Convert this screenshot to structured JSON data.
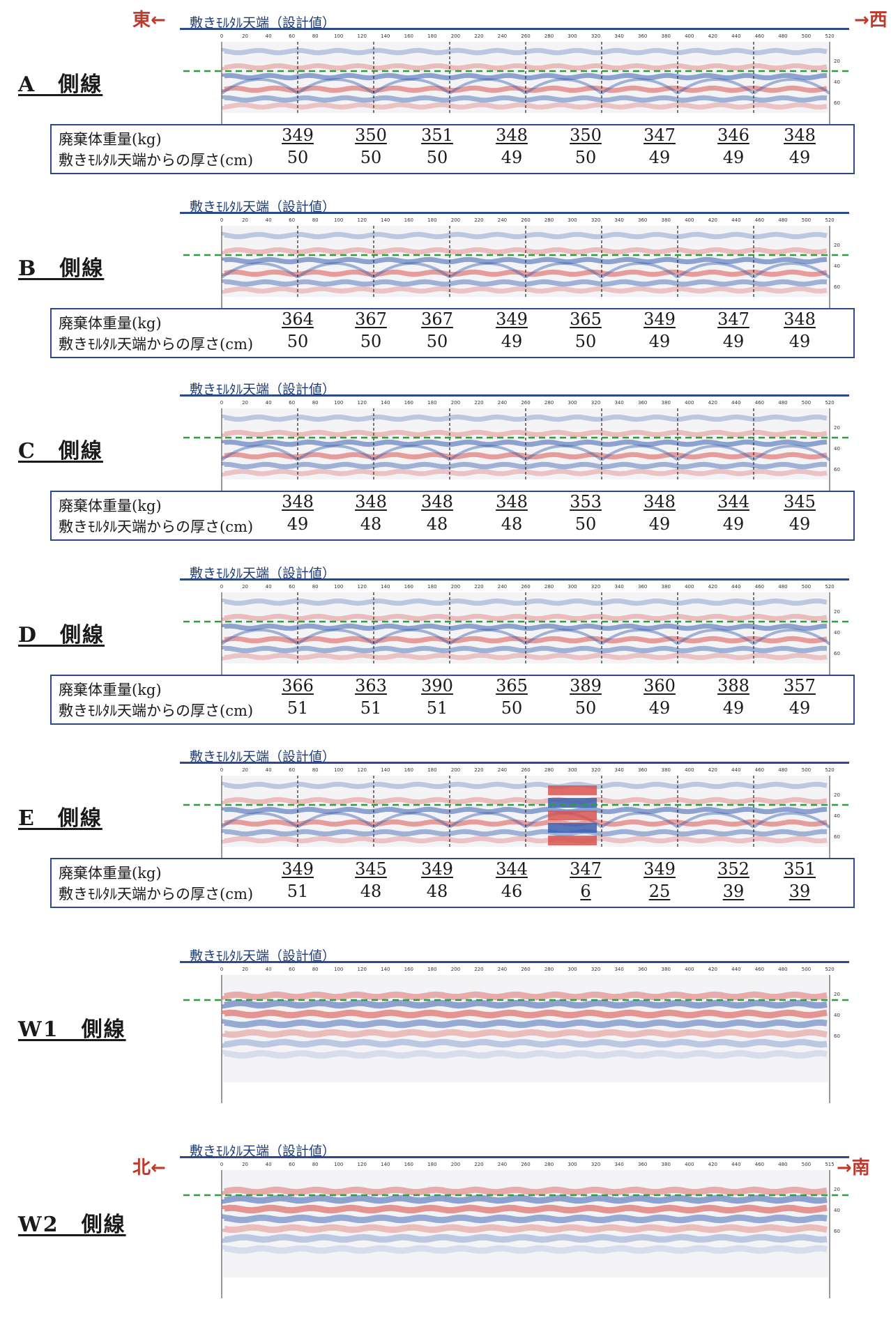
{
  "directions": {
    "top_left": "東←",
    "top_right": "→西",
    "bottom_left": "北←",
    "bottom_right": "→南"
  },
  "segment_title": "敷きﾓﾙﾀﾙ天端（設計値）",
  "table_labels": {
    "weight": "廃棄体重量(kg)",
    "thickness": "敷きﾓﾙﾀﾙ天端からの厚さ(cm)"
  },
  "colors": {
    "positive": "#d9534f",
    "negative": "#3a5fb0",
    "design_line": "#2e9e3a",
    "frame": "#2c4a8c"
  },
  "axis_ticks": [
    "0",
    "20",
    "40",
    "60",
    "80",
    "100",
    "120",
    "140",
    "160",
    "180",
    "200",
    "220",
    "240",
    "260",
    "280",
    "300",
    "320",
    "340",
    "360",
    "380",
    "400",
    "420",
    "440",
    "460",
    "480",
    "500",
    "520"
  ],
  "axis_ticks_w2": [
    "0",
    "20",
    "40",
    "60",
    "80",
    "100",
    "120",
    "140",
    "160",
    "180",
    "200",
    "220",
    "240",
    "260",
    "280",
    "300",
    "320",
    "340",
    "360",
    "380",
    "400",
    "420",
    "440",
    "460",
    "480",
    "500",
    "515"
  ],
  "depth_ticks": [
    "20",
    "40",
    "60"
  ],
  "chart_data": [
    {
      "type": "table",
      "line": "A　側線",
      "weights": [
        "349",
        "350",
        "351",
        "348",
        "350",
        "347",
        "346",
        "348"
      ],
      "thickness": [
        "50",
        "50",
        "50",
        "49",
        "50",
        "49",
        "49",
        "49"
      ]
    },
    {
      "type": "table",
      "line": "B　側線",
      "weights": [
        "364",
        "367",
        "367",
        "349",
        "365",
        "349",
        "347",
        "348"
      ],
      "thickness": [
        "50",
        "50",
        "50",
        "49",
        "50",
        "49",
        "49",
        "49"
      ]
    },
    {
      "type": "table",
      "line": "C　側線",
      "weights": [
        "348",
        "348",
        "348",
        "348",
        "353",
        "348",
        "344",
        "345"
      ],
      "thickness": [
        "49",
        "48",
        "48",
        "48",
        "50",
        "49",
        "49",
        "49"
      ]
    },
    {
      "type": "table",
      "line": "D　側線",
      "weights": [
        "366",
        "363",
        "390",
        "365",
        "389",
        "360",
        "388",
        "357"
      ],
      "thickness": [
        "51",
        "51",
        "51",
        "50",
        "50",
        "49",
        "49",
        "49"
      ]
    },
    {
      "type": "table",
      "line": "E　側線",
      "weights": [
        "349",
        "345",
        "349",
        "344",
        "347",
        "349",
        "352",
        "351"
      ],
      "thickness": [
        "51",
        "48",
        "48",
        "46",
        "6",
        "25",
        "39",
        "39"
      ]
    },
    {
      "type": "heatmap",
      "line": "W1　側線"
    },
    {
      "type": "heatmap",
      "line": "W2　側線"
    }
  ]
}
